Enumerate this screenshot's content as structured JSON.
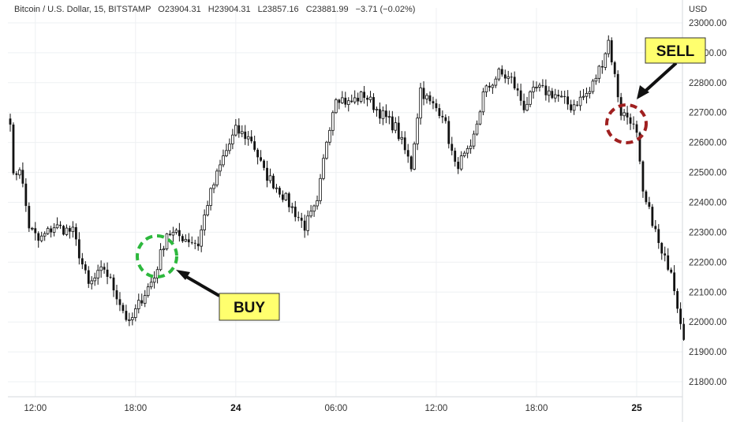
{
  "header": {
    "symbol": "Bitcoin / U.S. Dollar, 15, BITSTAMP",
    "open": "O23904.31",
    "high": "H23904.31",
    "low": "L23857.16",
    "close": "C23881.99",
    "change": "−3.71 (−0.02%)"
  },
  "unit": "USD",
  "colors": {
    "candle": "#111111",
    "buy_circle": "#2db83d",
    "sell_circle": "#a02020",
    "callout_bg": "#ffff6e",
    "arrow": "#111111"
  },
  "annotations": {
    "buy_label": "BUY",
    "sell_label": "SELL"
  },
  "chart_data": {
    "type": "candlestick",
    "title": "Bitcoin / U.S. Dollar, 15, BITSTAMP",
    "ylim": [
      21750,
      23050
    ],
    "yticks": [
      21800,
      21900,
      22000,
      22100,
      22200,
      22300,
      22400,
      22500,
      22600,
      22700,
      22800,
      22900,
      23000
    ],
    "ytick_labels": [
      "21800.00",
      "21900.00",
      "22000.00",
      "22100.00",
      "22200.00",
      "22300.00",
      "22400.00",
      "22500.00",
      "22600.00",
      "22700.00",
      "22800.00",
      "22900.00",
      "23000.00"
    ],
    "xticks": [
      {
        "label": "12:00",
        "index": 8,
        "bold": false
      },
      {
        "label": "18:00",
        "index": 40,
        "bold": false
      },
      {
        "label": "24",
        "index": 72,
        "bold": true
      },
      {
        "label": "06:00",
        "index": 104,
        "bold": false
      },
      {
        "label": "12:00",
        "index": 136,
        "bold": false
      },
      {
        "label": "18:00",
        "index": 168,
        "bold": false
      },
      {
        "label": "25",
        "index": 200,
        "bold": true
      }
    ],
    "buy_index": 47,
    "sell_index": 195,
    "anchors": [
      [
        0,
        22680
      ],
      [
        1,
        22480
      ],
      [
        3,
        22520
      ],
      [
        6,
        22320
      ],
      [
        9,
        22270
      ],
      [
        14,
        22320
      ],
      [
        20,
        22300
      ],
      [
        25,
        22120
      ],
      [
        30,
        22180
      ],
      [
        34,
        22090
      ],
      [
        38,
        21990
      ],
      [
        42,
        22080
      ],
      [
        46,
        22150
      ],
      [
        50,
        22300
      ],
      [
        56,
        22280
      ],
      [
        60,
        22260
      ],
      [
        63,
        22400
      ],
      [
        68,
        22550
      ],
      [
        72,
        22640
      ],
      [
        77,
        22610
      ],
      [
        81,
        22500
      ],
      [
        86,
        22440
      ],
      [
        90,
        22380
      ],
      [
        94,
        22320
      ],
      [
        98,
        22390
      ],
      [
        101,
        22610
      ],
      [
        104,
        22760
      ],
      [
        108,
        22730
      ],
      [
        113,
        22760
      ],
      [
        118,
        22700
      ],
      [
        123,
        22650
      ],
      [
        128,
        22520
      ],
      [
        131,
        22780
      ],
      [
        134,
        22730
      ],
      [
        138,
        22700
      ],
      [
        142,
        22520
      ],
      [
        147,
        22570
      ],
      [
        151,
        22760
      ],
      [
        156,
        22830
      ],
      [
        160,
        22810
      ],
      [
        164,
        22720
      ],
      [
        168,
        22780
      ],
      [
        174,
        22760
      ],
      [
        179,
        22720
      ],
      [
        185,
        22770
      ],
      [
        189,
        22870
      ],
      [
        191,
        22940
      ],
      [
        193,
        22820
      ],
      [
        195,
        22700
      ],
      [
        198,
        22680
      ],
      [
        200,
        22620
      ],
      [
        202,
        22420
      ],
      [
        205,
        22340
      ],
      [
        208,
        22220
      ],
      [
        211,
        22180
      ],
      [
        213,
        22060
      ],
      [
        215,
        21960
      ]
    ]
  }
}
